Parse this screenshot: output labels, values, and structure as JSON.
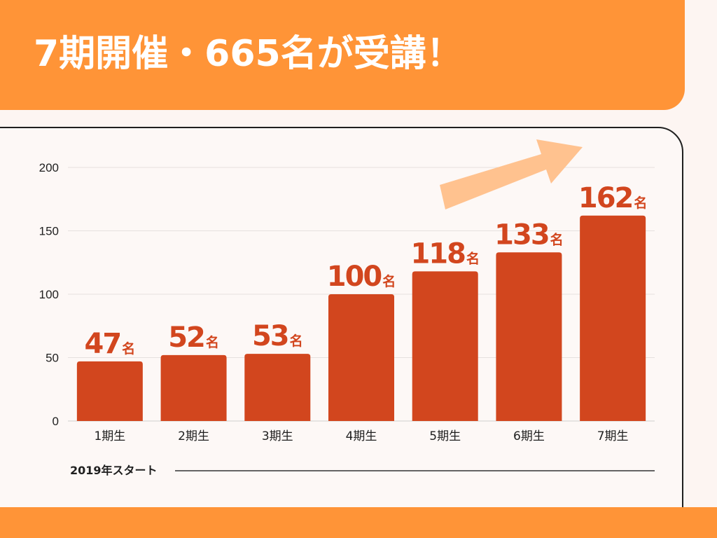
{
  "header": {
    "title": "7期開催・665名が受講！"
  },
  "colors": {
    "accent": "#ff9437",
    "bar": "#d2461e",
    "value_label": "#d2461e",
    "arrow": "#ffc28f",
    "page_background": "#fdf5f2"
  },
  "chart_data": {
    "type": "bar",
    "title": "",
    "xlabel": "",
    "ylabel": "",
    "categories": [
      "1期生",
      "2期生",
      "3期生",
      "4期生",
      "5期生",
      "6期生",
      "7期生"
    ],
    "values": [
      47,
      52,
      53,
      100,
      118,
      133,
      162
    ],
    "value_labels": [
      "47",
      "52",
      "53",
      "100",
      "118",
      "133",
      "162"
    ],
    "value_unit": "名",
    "ylim": [
      0,
      200
    ],
    "yticks": [
      0,
      50,
      100,
      150,
      200
    ],
    "grid": true,
    "legend": "none",
    "annotations": {
      "start_note": "2019年スタート",
      "trend": "upward-arrow"
    }
  }
}
